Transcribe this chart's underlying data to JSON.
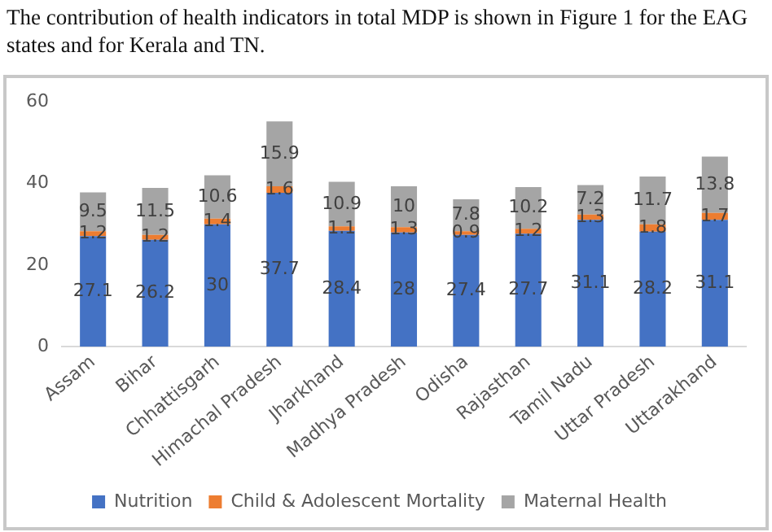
{
  "chart_data": {
    "type": "bar",
    "stacked": true,
    "annotations": [
      "The contribution of health indicators in total MDP is shown in Figure 1 for the EAG states and for Kerala and TN."
    ],
    "categories": [
      "Assam",
      "Bihar",
      "Chhattisgarh",
      "Himachal Pradesh",
      "Jharkhand",
      "Madhya Pradesh",
      "Odisha",
      "Rajasthan",
      "Tamil Nadu",
      "Uttar Pradesh",
      "Uttarakhand"
    ],
    "series": [
      {
        "name": "Nutrition",
        "color": "#4472c4",
        "values": [
          27.1,
          26.2,
          30,
          37.7,
          28.4,
          28,
          27.4,
          27.7,
          31.1,
          28.2,
          31.1
        ]
      },
      {
        "name": "Child & Adolescent Mortality",
        "color": "#ed7d31",
        "values": [
          1.2,
          1.2,
          1.4,
          1.6,
          1.1,
          1.3,
          0.9,
          1.2,
          1.3,
          1.8,
          1.7
        ]
      },
      {
        "name": "Maternal Health",
        "color": "#a5a5a5",
        "values": [
          9.5,
          11.5,
          10.6,
          15.9,
          10.9,
          10,
          7.8,
          10.2,
          7.2,
          11.7,
          13.8
        ]
      }
    ],
    "ylim": [
      0,
      60
    ],
    "yticks": [
      0,
      20,
      40,
      60
    ],
    "grid": false,
    "legend": "bottom",
    "data_labels": true
  }
}
